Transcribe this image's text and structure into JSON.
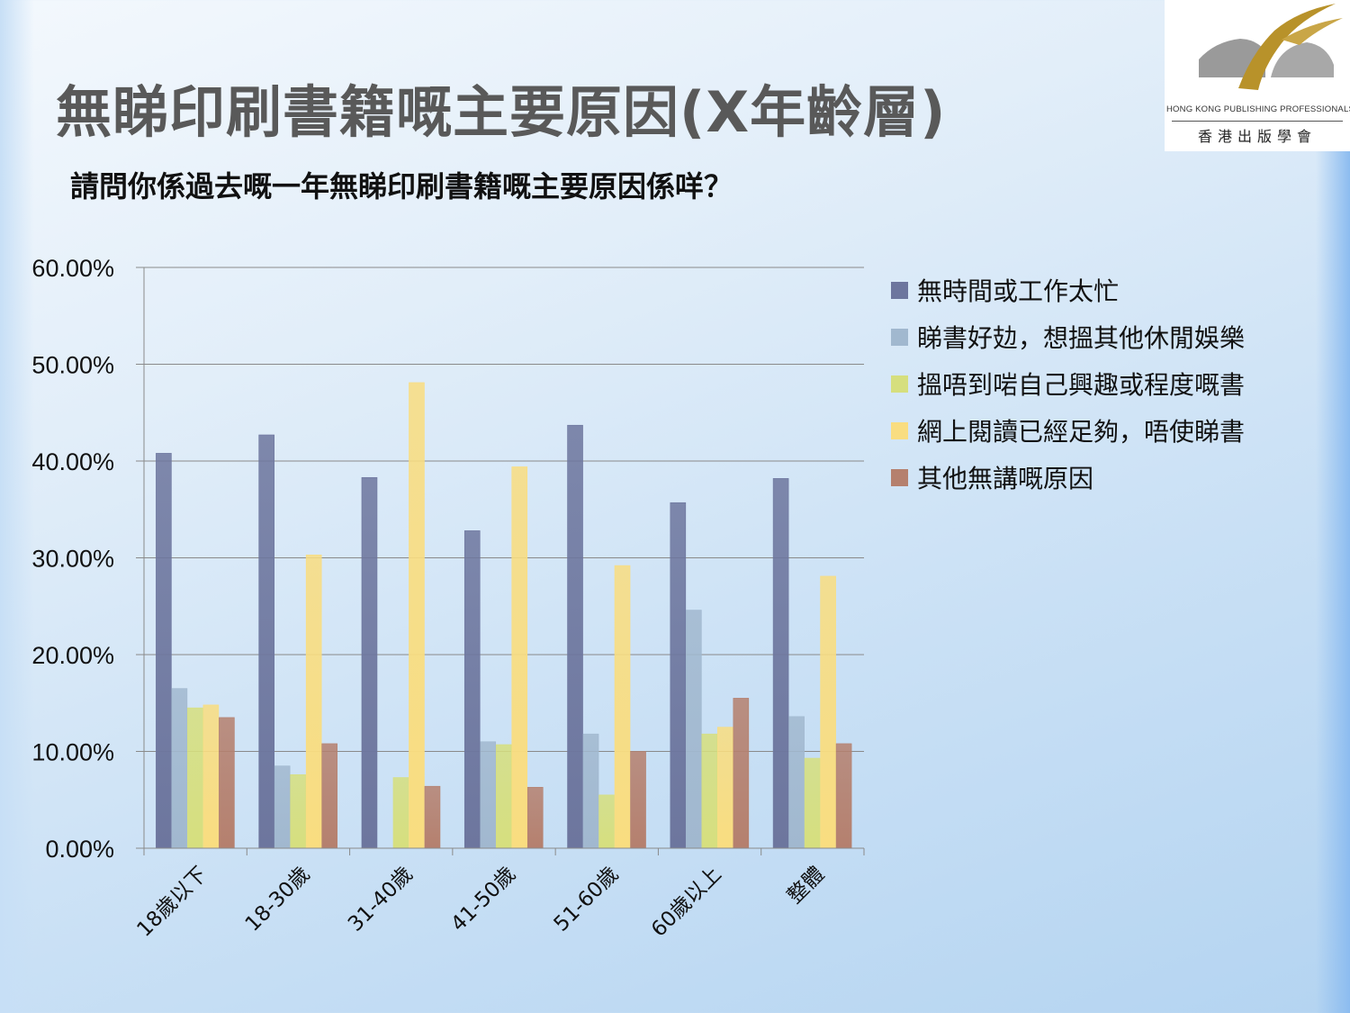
{
  "slide": {
    "title": "無睇印刷書籍嘅主要原因(X年齡層)",
    "subtitle": "請問你係過去嘅一年無睇印刷書籍嘅主要原因係咩？"
  },
  "logo": {
    "name_en": "HONG KONG PUBLISHING PROFESSIONALS SOCIETY",
    "name_zh": "香港出版學會",
    "colors": {
      "gold": "#b8922a",
      "gray": "#9a9a9a"
    }
  },
  "chart_data": {
    "type": "bar",
    "title": "",
    "xlabel": "",
    "ylabel": "",
    "ylim": [
      0,
      0.6
    ],
    "yticks": [
      0,
      0.1,
      0.2,
      0.3,
      0.4,
      0.5,
      0.6
    ],
    "ytick_labels": [
      "0.00%",
      "10.00%",
      "20.00%",
      "30.00%",
      "40.00%",
      "50.00%",
      "60.00%"
    ],
    "grid": true,
    "legend_position": "right",
    "categories": [
      "18歲以下",
      "18-30歲",
      "31-40歲",
      "41-50歲",
      "51-60歲",
      "60歲以上",
      "整體"
    ],
    "series": [
      {
        "name": "無時間或工作太忙",
        "color": "#6d769e",
        "values": [
          0.408,
          0.427,
          0.383,
          0.328,
          0.437,
          0.357,
          0.382
        ]
      },
      {
        "name": "睇書好攰，想搵其他休閒娛樂",
        "color": "#a1b8cf",
        "values": [
          0.165,
          0.085,
          0.0,
          0.11,
          0.118,
          0.246,
          0.136
        ]
      },
      {
        "name": "搵唔到啱自己興趣或程度嘅書",
        "color": "#d6df7e",
        "values": [
          0.145,
          0.076,
          0.073,
          0.107,
          0.055,
          0.118,
          0.093
        ]
      },
      {
        "name": "網上閱讀已經足夠，唔使睇書",
        "color": "#f9dd80",
        "values": [
          0.148,
          0.303,
          0.481,
          0.394,
          0.292,
          0.125,
          0.281
        ]
      },
      {
        "name": "其他無講嘅原因",
        "color": "#b5806e",
        "values": [
          0.135,
          0.108,
          0.064,
          0.063,
          0.1,
          0.155,
          0.108
        ]
      }
    ]
  }
}
